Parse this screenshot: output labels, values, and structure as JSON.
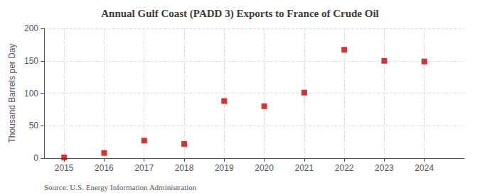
{
  "chart_data": {
    "type": "scatter",
    "title": "Annual Gulf Coast (PADD 3) Exports to France of Crude Oil",
    "ylabel": "Thousand Barrels per Day",
    "source": "Source: U.S. Energy Information Administration",
    "x": [
      2015,
      2016,
      2017,
      2018,
      2019,
      2020,
      2021,
      2022,
      2023,
      2024
    ],
    "values": [
      1,
      8,
      27,
      22,
      88,
      80,
      101,
      167,
      150,
      149
    ],
    "color": "#cc0000",
    "marker": "square",
    "xlim": [
      2014.5,
      2025.0
    ],
    "xticks": [
      2015,
      2016,
      2017,
      2018,
      2019,
      2020,
      2021,
      2022,
      2023,
      2024
    ],
    "ylim": [
      0,
      200
    ],
    "yticks": [
      0,
      50,
      100,
      150,
      200
    ],
    "grid": true
  }
}
